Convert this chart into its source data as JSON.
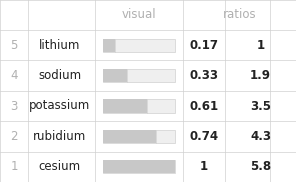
{
  "rows": [
    {
      "rank": "5",
      "element": "lithium",
      "ratio_val": 0.17,
      "ratio_num": "0.17",
      "ratios": "1"
    },
    {
      "rank": "4",
      "element": "sodium",
      "ratio_val": 0.33,
      "ratio_num": "0.33",
      "ratios": "1.9"
    },
    {
      "rank": "3",
      "element": "potassium",
      "ratio_val": 0.61,
      "ratio_num": "0.61",
      "ratios": "3.5"
    },
    {
      "rank": "2",
      "element": "rubidium",
      "ratio_val": 0.74,
      "ratio_num": "0.74",
      "ratios": "4.3"
    },
    {
      "rank": "1",
      "element": "cesium",
      "ratio_val": 1.0,
      "ratio_num": "1",
      "ratios": "5.8"
    }
  ],
  "bg_color": "#ffffff",
  "header_text_color": "#b0b0b0",
  "rank_text_color": "#b0b0b0",
  "element_text_color": "#222222",
  "value_text_color": "#222222",
  "bar_fill_color": "#c8c8c8",
  "bar_bg_color": "#efefef",
  "grid_color": "#d0d0d0",
  "font_size": 8.5,
  "header_font_size": 8.5
}
